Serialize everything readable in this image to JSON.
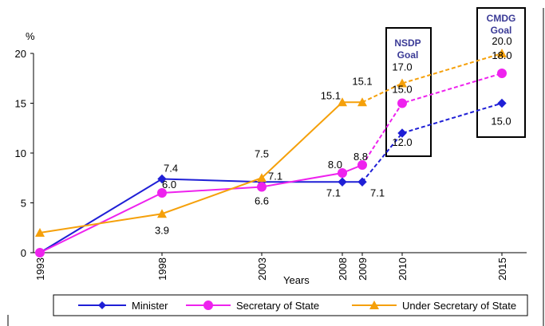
{
  "chart_data": {
    "type": "line",
    "title": "",
    "xlabel": "Years",
    "ylabel": "%",
    "ylim": [
      0,
      20
    ],
    "yticks": [
      "0",
      "5",
      "10",
      "15",
      "20"
    ],
    "x": [
      "1993",
      "1998",
      "2003",
      "2008",
      "2009",
      "2010",
      "2015"
    ],
    "grid": false,
    "legend_position": "bottom",
    "series": [
      {
        "name": "Minister",
        "color": "#1f1fd6",
        "marker": "diamond",
        "values": [
          0,
          7.4,
          7.1,
          7.1,
          7.1,
          12.0,
          15.0
        ],
        "labels": [
          "",
          "7.4",
          "7.1",
          "7.1",
          "7.1",
          "12.0",
          "15.0"
        ]
      },
      {
        "name": "Secretary of State",
        "color": "#ee22ee",
        "marker": "circle",
        "values": [
          0,
          6.0,
          6.6,
          8.0,
          8.8,
          15.0,
          18.0
        ],
        "labels": [
          "",
          "6.0",
          "6.6",
          "8.0",
          "8.8",
          "15.0",
          "18.0"
        ]
      },
      {
        "name": "Under Secretary of State",
        "color": "#f5a00a",
        "marker": "triangle",
        "values": [
          2.0,
          3.9,
          7.5,
          15.1,
          15.1,
          17.0,
          20.0
        ],
        "labels": [
          "",
          "3.9",
          "7.5",
          "15.1",
          "15.1",
          "17.0",
          "20.0"
        ]
      }
    ],
    "annotations": [
      {
        "text_line1": "NSDP",
        "text_line2": "Goal"
      },
      {
        "text_line1": "CMDG",
        "text_line2": "Goal"
      }
    ]
  }
}
